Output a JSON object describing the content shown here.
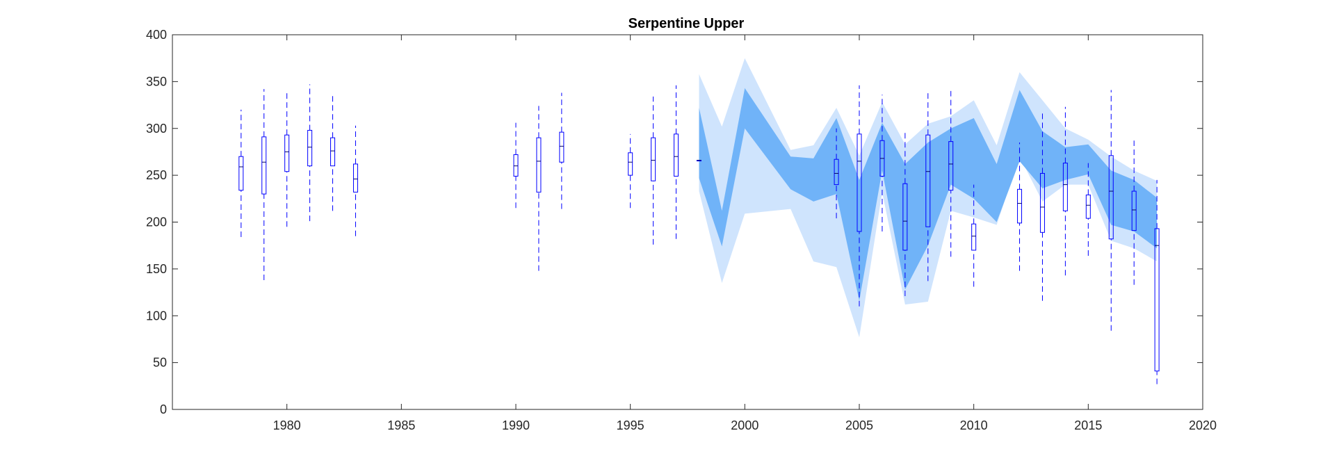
{
  "chart_data": {
    "type": "box",
    "title": "Serpentine Upper",
    "xlabel": "",
    "ylabel": "",
    "xlim": [
      1975,
      2020
    ],
    "ylim": [
      0,
      400
    ],
    "xticks": [
      1980,
      1985,
      1990,
      1995,
      2000,
      2005,
      2010,
      2015,
      2020
    ],
    "yticks": [
      0,
      50,
      100,
      150,
      200,
      250,
      300,
      350,
      400
    ],
    "grid": false,
    "box_color": "#0000ff",
    "outer_band_color": "#cfe4fd",
    "inner_band_color": "#70b3f8",
    "outer_band": {
      "x": [
        1998,
        1999,
        2000,
        2002,
        2003,
        2004,
        2005,
        2006,
        2007,
        2008,
        2009,
        2010,
        2011,
        2012,
        2013,
        2014,
        2015,
        2016,
        2017,
        2018
      ],
      "upper": [
        358,
        302,
        375,
        277,
        282,
        322,
        271,
        328,
        283,
        305,
        313,
        330,
        282,
        360,
        330,
        300,
        288,
        270,
        255,
        244
      ],
      "lower": [
        233,
        135,
        209,
        214,
        158,
        152,
        77,
        232,
        112,
        115,
        212,
        205,
        197,
        270,
        222,
        240,
        240,
        180,
        172,
        158
      ]
    },
    "inner_band": {
      "x": [
        1998,
        1999,
        2000,
        2002,
        2003,
        2004,
        2005,
        2006,
        2007,
        2008,
        2009,
        2010,
        2011,
        2012,
        2013,
        2014,
        2015,
        2016,
        2017,
        2018
      ],
      "upper": [
        322,
        212,
        343,
        270,
        268,
        311,
        245,
        306,
        262,
        285,
        300,
        311,
        262,
        341,
        297,
        280,
        283,
        255,
        245,
        226
      ],
      "lower": [
        247,
        174,
        300,
        235,
        222,
        230,
        116,
        255,
        128,
        175,
        240,
        225,
        200,
        265,
        236,
        245,
        251,
        197,
        190,
        172
      ]
    },
    "boxes": [
      {
        "x": 1978,
        "whisker_low": 184,
        "q1": 234,
        "median": 259,
        "q3": 270,
        "whisker_high": 320
      },
      {
        "x": 1979,
        "whisker_low": 138,
        "q1": 230,
        "median": 264,
        "q3": 291,
        "whisker_high": 342
      },
      {
        "x": 1980,
        "whisker_low": 195,
        "q1": 254,
        "median": 275,
        "q3": 293,
        "whisker_high": 341
      },
      {
        "x": 1981,
        "whisker_low": 201,
        "q1": 260,
        "median": 280,
        "q3": 298,
        "whisker_high": 347
      },
      {
        "x": 1982,
        "whisker_low": 212,
        "q1": 260,
        "median": 276,
        "q3": 290,
        "whisker_high": 337
      },
      {
        "x": 1983,
        "whisker_low": 185,
        "q1": 232,
        "median": 246,
        "q3": 262,
        "whisker_high": 303
      },
      {
        "x": 1990,
        "whisker_low": 215,
        "q1": 249,
        "median": 260,
        "q3": 272,
        "whisker_high": 306
      },
      {
        "x": 1991,
        "whisker_low": 148,
        "q1": 232,
        "median": 265,
        "q3": 290,
        "whisker_high": 324
      },
      {
        "x": 1992,
        "whisker_low": 214,
        "q1": 264,
        "median": 281,
        "q3": 296,
        "whisker_high": 338
      },
      {
        "x": 1995,
        "whisker_low": 215,
        "q1": 250,
        "median": 264,
        "q3": 274,
        "whisker_high": 294
      },
      {
        "x": 1996,
        "whisker_low": 176,
        "q1": 244,
        "median": 266,
        "q3": 290,
        "whisker_high": 334
      },
      {
        "x": 1997,
        "whisker_low": 182,
        "q1": 249,
        "median": 270,
        "q3": 294,
        "whisker_high": 346
      },
      {
        "x": 1998,
        "whisker_low": 266,
        "q1": 266,
        "median": 266,
        "q3": 266,
        "whisker_high": 266
      },
      {
        "x": 2004,
        "whisker_low": 204,
        "q1": 240,
        "median": 252,
        "q3": 267,
        "whisker_high": 300
      },
      {
        "x": 2005,
        "whisker_low": 110,
        "q1": 190,
        "median": 265,
        "q3": 294,
        "whisker_high": 346
      },
      {
        "x": 2006,
        "whisker_low": 190,
        "q1": 249,
        "median": 268,
        "q3": 287,
        "whisker_high": 336
      },
      {
        "x": 2007,
        "whisker_low": 121,
        "q1": 170,
        "median": 201,
        "q3": 241,
        "whisker_high": 297
      },
      {
        "x": 2008,
        "whisker_low": 137,
        "q1": 195,
        "median": 254,
        "q3": 293,
        "whisker_high": 341
      },
      {
        "x": 2009,
        "whisker_low": 163,
        "q1": 234,
        "median": 262,
        "q3": 286,
        "whisker_high": 340
      },
      {
        "x": 2010,
        "whisker_low": 131,
        "q1": 170,
        "median": 185,
        "q3": 198,
        "whisker_high": 240
      },
      {
        "x": 2012,
        "whisker_low": 148,
        "q1": 199,
        "median": 220,
        "q3": 235,
        "whisker_high": 285
      },
      {
        "x": 2013,
        "whisker_low": 116,
        "q1": 189,
        "median": 216,
        "q3": 252,
        "whisker_high": 316
      },
      {
        "x": 2014,
        "whisker_low": 143,
        "q1": 212,
        "median": 240,
        "q3": 263,
        "whisker_high": 323
      },
      {
        "x": 2015,
        "whisker_low": 164,
        "q1": 204,
        "median": 218,
        "q3": 229,
        "whisker_high": 263
      },
      {
        "x": 2016,
        "whisker_low": 84,
        "q1": 182,
        "median": 233,
        "q3": 271,
        "whisker_high": 341
      },
      {
        "x": 2017,
        "whisker_low": 133,
        "q1": 191,
        "median": 213,
        "q3": 233,
        "whisker_high": 287
      },
      {
        "x": 2018,
        "whisker_low": 27,
        "q1": 41,
        "median": 175,
        "q3": 193,
        "whisker_high": 245
      }
    ]
  }
}
